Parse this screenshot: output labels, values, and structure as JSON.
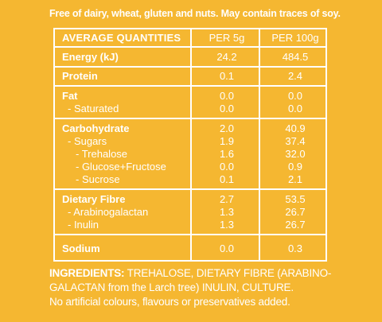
{
  "top_note": "Free of dairy, wheat, gluten and nuts. May contain traces of soy.",
  "table": {
    "header": {
      "label": "AVERAGE QUANTITIES",
      "col_a": "PER 5g",
      "col_b": "PER 100g"
    },
    "rows": [
      {
        "label": "Energy (kJ)",
        "a": "24.2",
        "b": "484.5"
      },
      {
        "label": "Protein",
        "a": "0.1",
        "b": "2.4"
      },
      {
        "label": "Fat",
        "a": "0.0",
        "b": "0.0"
      },
      {
        "label": "- Saturated",
        "a": "0.0",
        "b": "0.0"
      },
      {
        "label": "Carbohydrate",
        "a": "2.0",
        "b": "40.9"
      },
      {
        "label": "- Sugars",
        "a": "1.9",
        "b": "37.4"
      },
      {
        "label": "- Trehalose",
        "a": "1.6",
        "b": "32.0"
      },
      {
        "label": "- Glucose+Fructose",
        "a": "0.0",
        "b": "0.9"
      },
      {
        "label": "- Sucrose",
        "a": "0.1",
        "b": "2.1"
      },
      {
        "label": "Dietary Fibre",
        "a": "2.7",
        "b": "53.5"
      },
      {
        "label": "- Arabinogalactan",
        "a": "1.3",
        "b": "26.7"
      },
      {
        "label": "- Inulin",
        "a": "1.3",
        "b": "26.7"
      },
      {
        "label": "Sodium",
        "a": "0.0",
        "b": "0.3"
      }
    ]
  },
  "ingredients": {
    "label": "INGREDIENTS:",
    "line1": "TREHALOSE, DIETARY FIBRE (ARABINO-",
    "line2": "GALACTAN from the Larch tree) INULIN, CULTURE.",
    "line3": "No artificial colours, flavours or preservatives added."
  },
  "colors": {
    "background": "#f5b731",
    "text": "#ffffff"
  }
}
